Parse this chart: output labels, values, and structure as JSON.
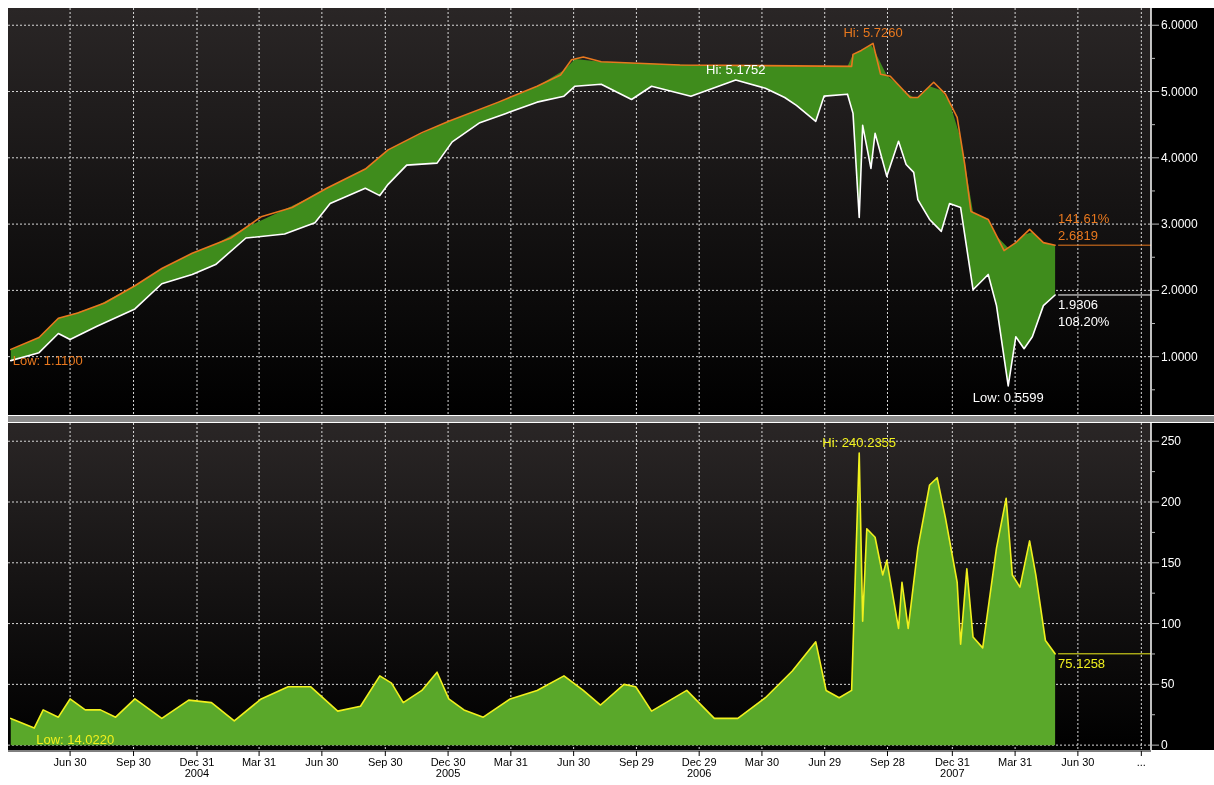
{
  "chart_data": [
    {
      "type": "line",
      "xlim": [
        "2004-04-01",
        "2008-10-14"
      ],
      "ylim": [
        0.12,
        6.26
      ],
      "tick_labels": "y",
      "grid": true,
      "xticks": [
        {
          "value": "2004-06-30",
          "label": null
        },
        {
          "value": "2004-09-30",
          "label": null
        },
        {
          "value": "2004-12-31",
          "label": null
        },
        {
          "value": "2005-03-31",
          "label": null
        },
        {
          "value": "2005-06-30",
          "label": null
        },
        {
          "value": "2005-09-30",
          "label": null
        },
        {
          "value": "2005-12-30",
          "label": null
        },
        {
          "value": "2006-03-31",
          "label": null
        },
        {
          "value": "2006-06-30",
          "label": null
        },
        {
          "value": "2006-09-29",
          "label": null
        },
        {
          "value": "2006-12-29",
          "label": null
        },
        {
          "value": "2007-03-30",
          "label": null
        },
        {
          "value": "2007-06-29",
          "label": null
        },
        {
          "value": "2007-09-28",
          "label": null
        },
        {
          "value": "2007-12-31",
          "label": null
        },
        {
          "value": "2008-03-31",
          "label": null
        },
        {
          "value": "2008-06-30",
          "label": null
        },
        {
          "value": "2008-09-30",
          "label": null
        }
      ],
      "yticks": [
        {
          "value": 0.5,
          "label": null
        },
        {
          "value": 1,
          "label": "1.0000"
        },
        {
          "value": 1.5,
          "label": null
        },
        {
          "value": 2,
          "label": "2.0000"
        },
        {
          "value": 2.5,
          "label": null
        },
        {
          "value": 3,
          "label": "3.0000"
        },
        {
          "value": 3.5,
          "label": null
        },
        {
          "value": 4,
          "label": "4.0000"
        },
        {
          "value": 4.5,
          "label": null
        },
        {
          "value": 5,
          "label": "5.0000"
        },
        {
          "value": 5.5,
          "label": null
        },
        {
          "value": 6,
          "label": "6.0000"
        }
      ],
      "series": [
        {
          "color": "#e8781e",
          "x": [
            "2004-04-05",
            "2004-05-16",
            "2004-06-13",
            "2004-07-11",
            "2004-08-19",
            "2004-10-02",
            "2004-11-10",
            "2004-12-24",
            "2005-02-18",
            "2005-04-03",
            "2005-05-18",
            "2005-07-07",
            "2005-09-01",
            "2005-10-04",
            "2005-11-22",
            "2005-12-31",
            "2006-03-13",
            "2006-05-08",
            "2006-06-11",
            "2006-06-27",
            "2006-07-14",
            "2006-08-09",
            "2006-12-01",
            "2007-04-01",
            "2007-08-07",
            "2007-08-09",
            "2007-08-21",
            "2007-09-07",
            "2007-09-18",
            "2007-10-02",
            "2007-10-31",
            "2007-11-11",
            "2007-12-04",
            "2007-12-21",
            "2008-01-07",
            "2008-01-18",
            "2008-01-27",
            "2008-02-21",
            "2008-03-15",
            "2008-04-01",
            "2008-04-21",
            "2008-05-11",
            "2008-05-28"
          ],
          "values": [
            1.11,
            1.29,
            1.58,
            1.66,
            1.81,
            2.07,
            2.33,
            2.56,
            2.79,
            3.11,
            3.25,
            3.54,
            3.83,
            4.12,
            4.38,
            4.55,
            4.84,
            5.08,
            5.25,
            5.48,
            5.52,
            5.45,
            5.4,
            5.39,
            5.38,
            5.56,
            5.62,
            5.726,
            5.26,
            5.23,
            4.91,
            4.91,
            5.14,
            4.96,
            4.61,
            3.9,
            3.19,
            3.07,
            2.6,
            2.72,
            2.92,
            2.72,
            2.6819
          ]
        },
        {
          "color": "#ffffff",
          "x": [
            "2004-04-05",
            "2004-05-16",
            "2004-06-13",
            "2004-06-30",
            "2004-08-08",
            "2004-10-02",
            "2004-11-10",
            "2004-12-24",
            "2005-01-27",
            "2005-03-12",
            "2005-05-07",
            "2005-06-20",
            "2005-07-12",
            "2005-09-01",
            "2005-09-22",
            "2005-10-04",
            "2005-10-31",
            "2005-12-14",
            "2006-01-05",
            "2006-02-14",
            "2006-03-24",
            "2006-05-08",
            "2006-06-16",
            "2006-07-02",
            "2006-08-09",
            "2006-09-22",
            "2006-10-21",
            "2006-12-17",
            "2007-02-20",
            "2007-04-04",
            "2007-05-02",
            "2007-05-19",
            "2007-06-16",
            "2007-06-28",
            "2007-08-01",
            "2007-08-09",
            "2007-08-18",
            "2007-08-23",
            "2007-09-04",
            "2007-09-10",
            "2007-09-27",
            "2007-10-14",
            "2007-10-25",
            "2007-11-05",
            "2007-11-11",
            "2007-11-28",
            "2007-12-15",
            "2007-12-27",
            "2008-01-12",
            "2008-01-30",
            "2008-02-21",
            "2008-03-04",
            "2008-03-21",
            "2008-04-01",
            "2008-04-13",
            "2008-04-25",
            "2008-05-11",
            "2008-05-28"
          ],
          "values": [
            0.94,
            1.06,
            1.35,
            1.26,
            1.46,
            1.72,
            2.1,
            2.24,
            2.39,
            2.79,
            2.85,
            3.02,
            3.31,
            3.54,
            3.43,
            3.6,
            3.89,
            3.92,
            4.24,
            4.53,
            4.67,
            4.84,
            4.93,
            5.08,
            5.11,
            4.88,
            5.08,
            4.93,
            5.1752,
            5.05,
            4.91,
            4.79,
            4.55,
            4.93,
            4.96,
            4.67,
            3.1,
            4.49,
            3.84,
            4.37,
            3.72,
            4.25,
            3.9,
            3.78,
            3.37,
            3.07,
            2.89,
            3.31,
            3.25,
            2.01,
            2.24,
            1.77,
            0.5599,
            1.3,
            1.12,
            1.3,
            1.77,
            1.9306
          ],
          "lower": [
            0.94,
            1.06,
            1.35,
            1.26,
            1.46,
            1.72,
            2.1,
            2.24,
            2.39,
            2.79,
            2.85,
            3.02,
            3.31,
            3.54,
            3.43,
            3.6,
            3.89,
            3.92,
            4.24,
            4.53,
            4.67,
            4.84,
            4.93,
            5.08,
            5.11,
            4.88,
            5.08,
            4.93,
            5.1752,
            5.05,
            4.91,
            4.79,
            4.55,
            4.93,
            4.96,
            4.67,
            3.1,
            4.49,
            3.84,
            4.37,
            3.72,
            4.25,
            3.9,
            3.78,
            3.37,
            3.07,
            2.89,
            3.31,
            3.25,
            2.01,
            2.24,
            1.77,
            0.5599,
            1.3,
            1.12,
            1.3,
            1.77,
            1.9306
          ],
          "upper": [
            1.11,
            1.29,
            1.58,
            1.63,
            1.77,
            2.07,
            2.33,
            2.56,
            2.7,
            2.95,
            3.22,
            3.44,
            3.57,
            3.83,
            4.01,
            4.12,
            4.26,
            4.48,
            4.57,
            4.73,
            4.89,
            5.08,
            5.32,
            5.49,
            5.45,
            5.43,
            5.42,
            5.4,
            5.4,
            5.39,
            5.39,
            5.39,
            5.38,
            5.38,
            5.38,
            5.56,
            5.61,
            5.63,
            5.71,
            5.6,
            5.24,
            5.1,
            4.98,
            4.91,
            4.91,
            5.08,
            5.02,
            4.84,
            4.29,
            3.18,
            3.07,
            2.82,
            2.64,
            2.72,
            2.84,
            2.88,
            2.72,
            2.6819
          ]
        }
      ],
      "ref_lines": [
        {
          "axis": "y",
          "value": 2.6819,
          "label": "2.6819",
          "color": "#e8781e"
        },
        {
          "axis": "y",
          "value": 1.9306,
          "label": "1.9306",
          "color": "#ffffff"
        }
      ],
      "annotations": [
        {
          "text": "Hi: 5.7260",
          "x": "2007-09-07",
          "y": 5.726
        },
        {
          "text": "Hi: 5.1752",
          "x": "2007-02-20",
          "y": 5.1752
        },
        {
          "text": "Low: 1.1100",
          "x": "2004-04-05",
          "y": 1.11
        },
        {
          "text": "Low: 0.5599",
          "x": "2008-03-21",
          "y": 0.5599
        },
        {
          "text": "141.61%",
          "x": "2008-05-28",
          "y": 2.6819
        },
        {
          "text": "108.20%",
          "x": "2008-05-28",
          "y": 1.9306
        }
      ]
    },
    {
      "type": "area",
      "xlim": [
        "2004-04-01",
        "2008-10-14"
      ],
      "ylim": [
        -4,
        265
      ],
      "grid": true,
      "xticks": [
        {
          "value": "2004-06-30",
          "label": "Jun 30"
        },
        {
          "value": "2004-09-30",
          "label": "Sep 30"
        },
        {
          "value": "2004-12-31",
          "label": "Dec 31\n2004"
        },
        {
          "value": "2005-03-31",
          "label": "Mar 31"
        },
        {
          "value": "2005-06-30",
          "label": "Jun 30"
        },
        {
          "value": "2005-09-30",
          "label": "Sep 30"
        },
        {
          "value": "2005-12-30",
          "label": "Dec 30\n2005"
        },
        {
          "value": "2006-03-31",
          "label": "Mar 31"
        },
        {
          "value": "2006-06-30",
          "label": "Jun 30"
        },
        {
          "value": "2006-09-29",
          "label": "Sep 29"
        },
        {
          "value": "2006-12-29",
          "label": "Dec 29\n2006"
        },
        {
          "value": "2007-03-30",
          "label": "Mar 30"
        },
        {
          "value": "2007-06-29",
          "label": "Jun 29"
        },
        {
          "value": "2007-09-28",
          "label": "Sep 28"
        },
        {
          "value": "2007-12-31",
          "label": "Dec 31\n2007"
        },
        {
          "value": "2008-03-31",
          "label": "Mar 31"
        },
        {
          "value": "2008-06-30",
          "label": "Jun 30"
        },
        {
          "value": "2008-09-30",
          "label": "..."
        }
      ],
      "yticks": [
        0,
        {
          "value": 25,
          "label": null
        },
        50,
        {
          "value": 75,
          "label": null
        },
        100,
        {
          "value": 125,
          "label": null
        },
        150,
        {
          "value": 175,
          "label": null
        },
        200,
        {
          "value": 225,
          "label": null
        },
        250
      ],
      "series": [
        {
          "color": "#f0f01e",
          "x": [
            "2004-04-05",
            "2004-05-09",
            "2004-05-22",
            "2004-06-13",
            "2004-06-30",
            "2004-07-22",
            "2004-08-13",
            "2004-09-04",
            "2004-10-02",
            "2004-11-10",
            "2004-12-19",
            "2005-01-21",
            "2005-02-23",
            "2005-04-03",
            "2005-05-12",
            "2005-06-14",
            "2005-07-23",
            "2005-08-25",
            "2005-09-22",
            "2005-10-09",
            "2005-10-26",
            "2005-11-22",
            "2005-12-14",
            "2005-12-31",
            "2006-01-22",
            "2006-02-19",
            "2006-03-30",
            "2006-05-08",
            "2006-06-16",
            "2006-07-14",
            "2006-08-08",
            "2006-09-11",
            "2006-09-28",
            "2006-10-21",
            "2006-12-11",
            "2007-01-20",
            "2007-02-23",
            "2007-04-04",
            "2007-05-13",
            "2007-06-16",
            "2007-07-01",
            "2007-07-20",
            "2007-08-07",
            "2007-08-18",
            "2007-08-23",
            "2007-08-29",
            "2007-09-10",
            "2007-09-21",
            "2007-09-27",
            "2007-10-14",
            "2007-10-19",
            "2007-10-28",
            "2007-11-11",
            "2007-11-28",
            "2007-12-09",
            "2007-12-21",
            "2008-01-07",
            "2008-01-12",
            "2008-01-21",
            "2008-01-30",
            "2008-02-13",
            "2008-03-04",
            "2008-03-18",
            "2008-03-27",
            "2008-04-07",
            "2008-04-21",
            "2008-04-30",
            "2008-05-14",
            "2008-05-28"
          ],
          "values": [
            22,
            14.022,
            29,
            23,
            38,
            29,
            29,
            23,
            38,
            22,
            37,
            35,
            20,
            38,
            48,
            48,
            28,
            32,
            57,
            51,
            35,
            45,
            60,
            38,
            29,
            23,
            38,
            45,
            57,
            45,
            33,
            50,
            48,
            28,
            45,
            22,
            22,
            39,
            61,
            85,
            45,
            39,
            45,
            240.2355,
            102,
            178,
            171,
            140,
            152,
            96,
            134,
            96,
            162,
            214,
            220,
            187,
            134,
            83,
            145,
            89,
            80,
            162,
            203,
            140,
            130,
            168,
            140,
            86,
            75.1258
          ]
        }
      ],
      "ref_lines": [
        {
          "axis": "y",
          "value": 75.1258,
          "label": "75.1258",
          "color": "#f0f01e"
        }
      ],
      "annotations": [
        {
          "text": "Hi: 240.2355",
          "x": "2007-08-18",
          "y": 240.2355
        },
        {
          "text": "Low: 14.0220",
          "x": "2004-05-09",
          "y": 14.022
        }
      ]
    }
  ]
}
